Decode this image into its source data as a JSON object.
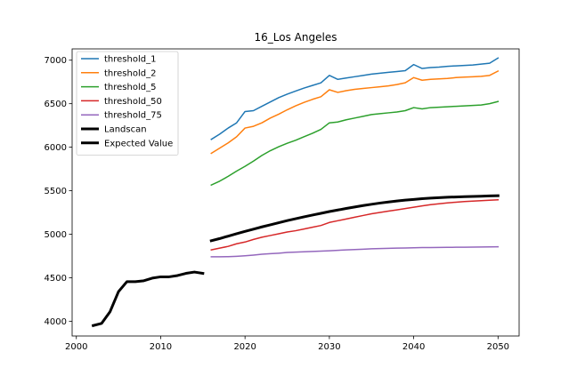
{
  "chart_data": {
    "type": "line",
    "title": "16_Los Angeles",
    "xlabel": "",
    "ylabel": "",
    "xlim": [
      1999.5,
      2052.5
    ],
    "ylim": [
      3830,
      7130
    ],
    "xticks": [
      2000,
      2010,
      2020,
      2030,
      2040,
      2050
    ],
    "yticks": [
      4000,
      4500,
      5000,
      5500,
      6000,
      6500,
      7000
    ],
    "grid": false,
    "legend_position": "top-left",
    "series": [
      {
        "name": "threshold_1",
        "color": "#1f77b4",
        "linewidth": 1.5,
        "x": [
          2016,
          2017,
          2018,
          2019,
          2020,
          2021,
          2022,
          2023,
          2024,
          2025,
          2026,
          2027,
          2028,
          2029,
          2030,
          2031,
          2032,
          2033,
          2034,
          2035,
          2036,
          2037,
          2038,
          2039,
          2040,
          2041,
          2042,
          2043,
          2044,
          2045,
          2046,
          2047,
          2048,
          2049,
          2050
        ],
        "y": [
          6090,
          6150,
          6220,
          6280,
          6410,
          6420,
          6470,
          6520,
          6570,
          6610,
          6645,
          6680,
          6710,
          6740,
          6825,
          6780,
          6795,
          6810,
          6825,
          6840,
          6850,
          6860,
          6870,
          6880,
          6950,
          6905,
          6915,
          6920,
          6930,
          6935,
          6940,
          6945,
          6955,
          6965,
          7025
        ]
      },
      {
        "name": "threshold_2",
        "color": "#ff7f0e",
        "linewidth": 1.5,
        "x": [
          2016,
          2017,
          2018,
          2019,
          2020,
          2021,
          2022,
          2023,
          2024,
          2025,
          2026,
          2027,
          2028,
          2029,
          2030,
          2031,
          2032,
          2033,
          2034,
          2035,
          2036,
          2037,
          2038,
          2039,
          2040,
          2041,
          2042,
          2043,
          2044,
          2045,
          2046,
          2047,
          2048,
          2049,
          2050
        ],
        "y": [
          5930,
          5990,
          6050,
          6120,
          6220,
          6240,
          6280,
          6335,
          6380,
          6430,
          6475,
          6515,
          6550,
          6580,
          6660,
          6630,
          6650,
          6665,
          6675,
          6685,
          6695,
          6705,
          6720,
          6740,
          6800,
          6770,
          6780,
          6785,
          6790,
          6800,
          6805,
          6810,
          6815,
          6825,
          6875
        ]
      },
      {
        "name": "threshold_5",
        "color": "#2ca02c",
        "linewidth": 1.5,
        "x": [
          2016,
          2017,
          2018,
          2019,
          2020,
          2021,
          2022,
          2023,
          2024,
          2025,
          2026,
          2027,
          2028,
          2029,
          2030,
          2031,
          2032,
          2033,
          2034,
          2035,
          2036,
          2037,
          2038,
          2039,
          2040,
          2041,
          2042,
          2043,
          2044,
          2045,
          2046,
          2047,
          2048,
          2049,
          2050
        ],
        "y": [
          5565,
          5610,
          5665,
          5725,
          5780,
          5840,
          5905,
          5960,
          6005,
          6045,
          6080,
          6120,
          6160,
          6205,
          6280,
          6290,
          6315,
          6335,
          6355,
          6375,
          6385,
          6395,
          6405,
          6420,
          6455,
          6440,
          6455,
          6460,
          6465,
          6470,
          6475,
          6480,
          6485,
          6500,
          6525
        ]
      },
      {
        "name": "threshold_50",
        "color": "#d62728",
        "linewidth": 1.5,
        "x": [
          2016,
          2017,
          2018,
          2019,
          2020,
          2021,
          2022,
          2023,
          2024,
          2025,
          2026,
          2027,
          2028,
          2029,
          2030,
          2031,
          2032,
          2033,
          2034,
          2035,
          2036,
          2037,
          2038,
          2039,
          2040,
          2041,
          2042,
          2043,
          2044,
          2045,
          2046,
          2047,
          2048,
          2049,
          2050
        ],
        "y": [
          4820,
          4840,
          4860,
          4890,
          4910,
          4940,
          4965,
          4985,
          5005,
          5025,
          5040,
          5060,
          5080,
          5100,
          5135,
          5155,
          5175,
          5195,
          5215,
          5235,
          5250,
          5265,
          5280,
          5295,
          5310,
          5325,
          5340,
          5350,
          5360,
          5368,
          5375,
          5380,
          5385,
          5390,
          5395
        ]
      },
      {
        "name": "threshold_75",
        "color": "#9467bd",
        "linewidth": 1.5,
        "x": [
          2016,
          2017,
          2018,
          2019,
          2020,
          2021,
          2022,
          2023,
          2024,
          2025,
          2026,
          2027,
          2028,
          2029,
          2030,
          2031,
          2032,
          2033,
          2034,
          2035,
          2036,
          2037,
          2038,
          2039,
          2040,
          2041,
          2042,
          2043,
          2044,
          2045,
          2046,
          2047,
          2048,
          2049,
          2050
        ],
        "y": [
          4740,
          4740,
          4742,
          4746,
          4752,
          4760,
          4770,
          4776,
          4782,
          4790,
          4794,
          4798,
          4802,
          4806,
          4810,
          4815,
          4820,
          4824,
          4828,
          4832,
          4835,
          4838,
          4840,
          4842,
          4844,
          4846,
          4847,
          4848,
          4849,
          4850,
          4851,
          4852,
          4853,
          4854,
          4855
        ]
      },
      {
        "name": "Landscan",
        "color": "#000000",
        "linewidth": 3,
        "x": [
          2002,
          2003,
          2004,
          2005,
          2006,
          2007,
          2008,
          2009,
          2010,
          2011,
          2012,
          2013,
          2014,
          2015
        ],
        "y": [
          3950,
          3975,
          4110,
          4340,
          4455,
          4455,
          4465,
          4495,
          4510,
          4510,
          4525,
          4550,
          4565,
          4550
        ]
      },
      {
        "name": "Expected Value",
        "color": "#000000",
        "linewidth": 3,
        "x": [
          2016,
          2017,
          2018,
          2019,
          2020,
          2021,
          2022,
          2023,
          2024,
          2025,
          2026,
          2027,
          2028,
          2029,
          2030,
          2031,
          2032,
          2033,
          2034,
          2035,
          2036,
          2037,
          2038,
          2039,
          2040,
          2041,
          2042,
          2043,
          2044,
          2045,
          2046,
          2047,
          2048,
          2049,
          2050
        ],
        "y": [
          4925,
          4950,
          4978,
          5005,
          5032,
          5058,
          5084,
          5108,
          5132,
          5156,
          5178,
          5200,
          5220,
          5240,
          5260,
          5278,
          5296,
          5313,
          5329,
          5344,
          5358,
          5370,
          5382,
          5392,
          5400,
          5408,
          5415,
          5420,
          5425,
          5428,
          5431,
          5434,
          5437,
          5440,
          5443
        ]
      }
    ]
  }
}
